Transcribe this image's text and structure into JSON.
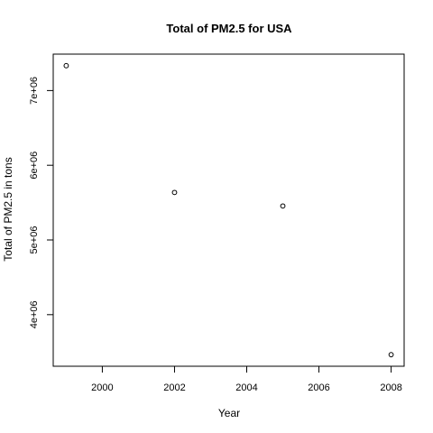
{
  "chart_data": {
    "type": "scatter",
    "title": "Total of PM2.5 for USA",
    "xlabel": "Year",
    "ylabel": "Total of PM2.5 in tons",
    "x": [
      1999,
      2002,
      2005,
      2008
    ],
    "y": [
      7332967,
      5635780,
      5454703,
      3464206
    ],
    "xlim": [
      1999,
      2008
    ],
    "ylim": [
      3464206,
      7332967
    ],
    "xticks": [
      2000,
      2002,
      2004,
      2006,
      2008
    ],
    "xtick_labels": [
      "2000",
      "2002",
      "2004",
      "2006",
      "2008"
    ],
    "yticks": [
      4000000,
      5000000,
      6000000,
      7000000
    ],
    "ytick_labels": [
      "4e+06",
      "5e+06",
      "6e+06",
      "7e+06"
    ],
    "grid": false,
    "marker": "open-circle",
    "colors": {
      "points": "#000000",
      "axes": "#000000"
    }
  }
}
